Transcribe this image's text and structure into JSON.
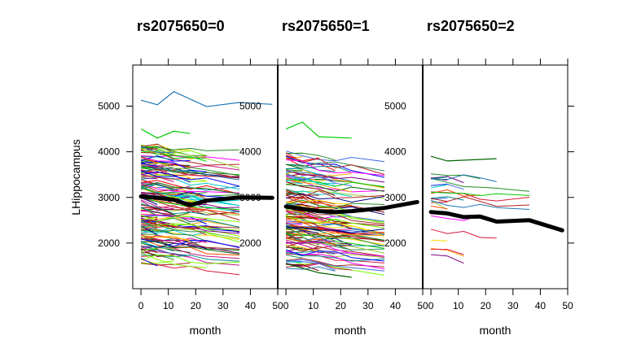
{
  "chart_data": {
    "type": "line",
    "ylabel": "LHippocampus",
    "ylim": [
      1000,
      5900
    ],
    "yticks": [
      2000,
      3000,
      4000,
      5000
    ],
    "xlim": [
      -3,
      50
    ],
    "xticks": [
      0,
      10,
      20,
      30,
      40,
      50
    ],
    "colors": [
      "#ff0000",
      "#00cc00",
      "#0000ff",
      "#ff00ff",
      "#00cccc",
      "#ffa500",
      "#8b0000",
      "#006400",
      "#1f77b4",
      "#ffd700",
      "#800080",
      "#ff1493",
      "#7cfc00",
      "#a52a2a",
      "#ff4500",
      "#2e8b57",
      "#4169e1",
      "#c71585",
      "#008b8b",
      "#9acd32",
      "#dc143c",
      "#228b22",
      "#b22222",
      "#000080"
    ],
    "panels": [
      {
        "title": "rs2075650=0",
        "xlabel": "month",
        "mean_line": {
          "x": [
            0,
            6,
            12,
            18,
            24,
            36,
            48
          ],
          "y": [
            3020,
            2990,
            2950,
            2830,
            2930,
            3000,
            2990
          ]
        },
        "highlight_lines": [
          {
            "x": [
              0,
              6,
              12,
              24,
              36,
              48
            ],
            "y": [
              5130,
              5030,
              5320,
              4990,
              5080,
              5040
            ]
          },
          {
            "x": [
              0,
              6,
              12,
              18
            ],
            "y": [
              4500,
              4300,
              4450,
              4400
            ]
          }
        ],
        "n_subjects": 170,
        "band": [
          1550,
          4150
        ]
      },
      {
        "title": "rs2075650=1",
        "xlabel": "month",
        "mean_line": {
          "x": [
            0,
            6,
            12,
            18,
            24,
            36,
            48
          ],
          "y": [
            2800,
            2750,
            2700,
            2680,
            2700,
            2770,
            2900
          ]
        },
        "highlight_lines": [
          {
            "x": [
              0,
              6,
              12,
              24
            ],
            "y": [
              4500,
              4650,
              4330,
              4300
            ]
          },
          {
            "x": [
              0,
              12,
              24
            ],
            "y": [
              1550,
              1350,
              1250
            ]
          }
        ],
        "n_subjects": 140,
        "band": [
          1500,
          4050
        ]
      },
      {
        "title": "rs2075650=2",
        "xlabel": "month",
        "mean_line": {
          "x": [
            0,
            6,
            12,
            18,
            24,
            36,
            48
          ],
          "y": [
            2680,
            2650,
            2570,
            2580,
            2470,
            2500,
            2280
          ]
        },
        "highlight_lines": [
          {
            "x": [
              0,
              6,
              24
            ],
            "y": [
              3900,
              3800,
              3850
            ]
          }
        ],
        "n_subjects": 25,
        "band": [
          1600,
          3500
        ]
      }
    ],
    "inner_ytick_labels": [
      "2000",
      "3000",
      "4000",
      "5000"
    ]
  }
}
